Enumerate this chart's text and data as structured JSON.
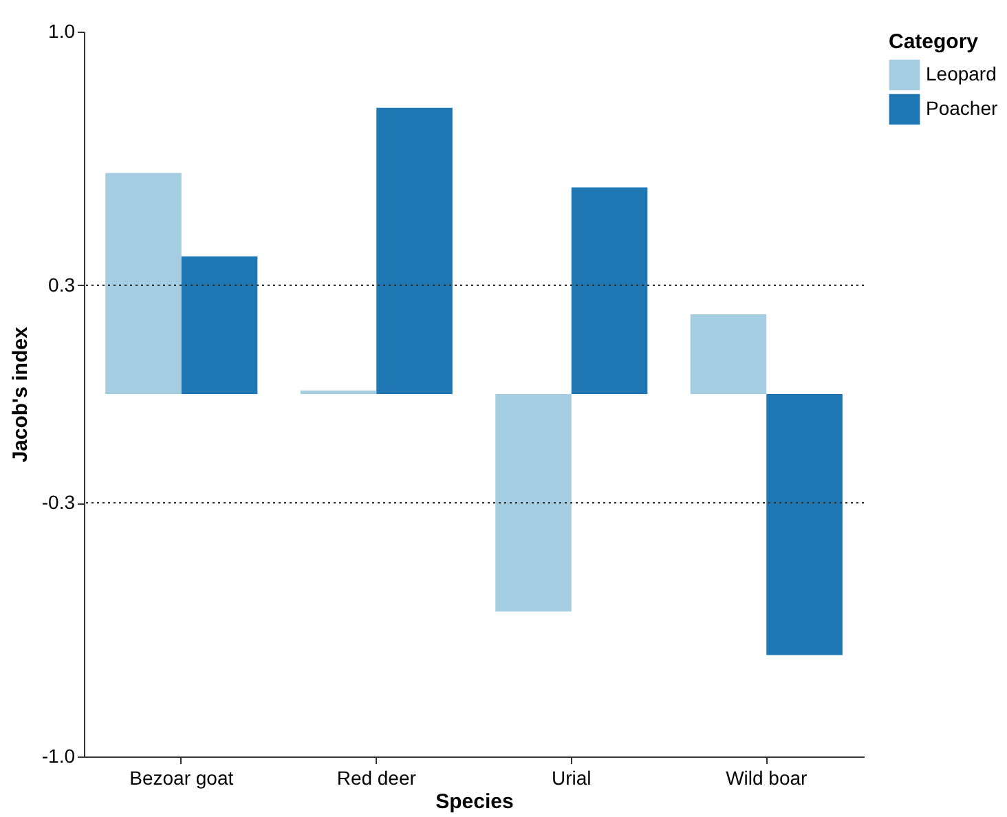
{
  "chart_data": {
    "type": "bar",
    "xlabel": "Species",
    "ylabel": "Jacob's index",
    "legend_title": "Category",
    "legend": "right",
    "categories": [
      "Bezoar goat",
      "Red deer",
      "Urial",
      "Wild boar"
    ],
    "series": [
      {
        "name": "Leopard",
        "color": "#a6cee3",
        "values": [
          0.61,
          0.01,
          -0.6,
          0.22
        ]
      },
      {
        "name": "Poacher",
        "color": "#1f78b4",
        "values": [
          0.38,
          0.79,
          0.57,
          -0.72
        ]
      }
    ],
    "ylim": [
      -1,
      1
    ],
    "yticks": [
      {
        "value": -1,
        "label": "-1.0"
      },
      {
        "value": -0.3,
        "label": "-0.3"
      },
      {
        "value": 0.3,
        "label": "0.3"
      },
      {
        "value": 1,
        "label": "1.0"
      }
    ],
    "ref_lines": [
      {
        "axis": "y",
        "value": 0.3,
        "line_style": "dotted",
        "color": "#333333"
      },
      {
        "axis": "y",
        "value": -0.3,
        "line_style": "dotted",
        "color": "#333333"
      }
    ],
    "grid": false
  }
}
